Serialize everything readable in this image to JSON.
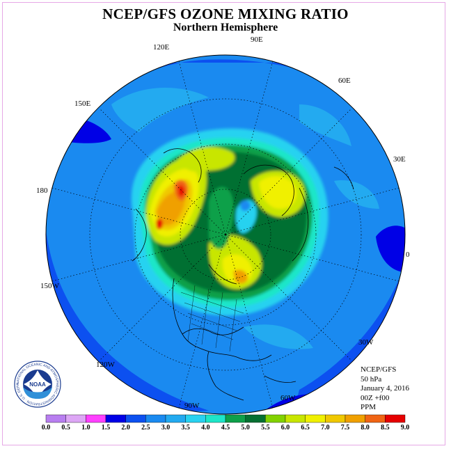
{
  "title": "NCEP/GFS OZONE MIXING RATIO",
  "subtitle": "Northern Hemisphere",
  "longitude_labels": {
    "e120": "120E",
    "e90": "90E",
    "e60": "60E",
    "e150": "150E",
    "e30": "30E",
    "w180": "180",
    "zero": "0",
    "w150": "150W",
    "w30": "30W",
    "w120": "120W",
    "w60": "60W",
    "w90": "90W"
  },
  "info": {
    "source": "NCEP/GFS",
    "level": "50 hPa",
    "date": "January 4, 2016",
    "time": "00Z +f00",
    "unit": "PPM"
  },
  "colorbar": {
    "ticks": [
      "0.0",
      "0.5",
      "1.0",
      "1.5",
      "2.0",
      "2.5",
      "3.0",
      "3.5",
      "4.0",
      "4.5",
      "5.0",
      "5.5",
      "6.0",
      "6.5",
      "7.0",
      "7.5",
      "8.0",
      "8.5",
      "9.0"
    ],
    "colors": [
      "#b87ef0",
      "#dda6f5",
      "#ff40ff",
      "#0000e6",
      "#0c50f0",
      "#1a8af0",
      "#23aaf0",
      "#28d2f0",
      "#1ee6c8",
      "#0ea04a",
      "#057032",
      "#82d200",
      "#c8e600",
      "#f0f000",
      "#f0c800",
      "#f0a000",
      "#f06414",
      "#e60000",
      "#8b5a2b"
    ]
  },
  "logo": {
    "text": "NOAA",
    "ring_text": "NATIONAL OCEANIC AND ATMOSPHERIC ADMINISTRATION · U.S. DEPARTMENT OF COMMERCE"
  }
}
